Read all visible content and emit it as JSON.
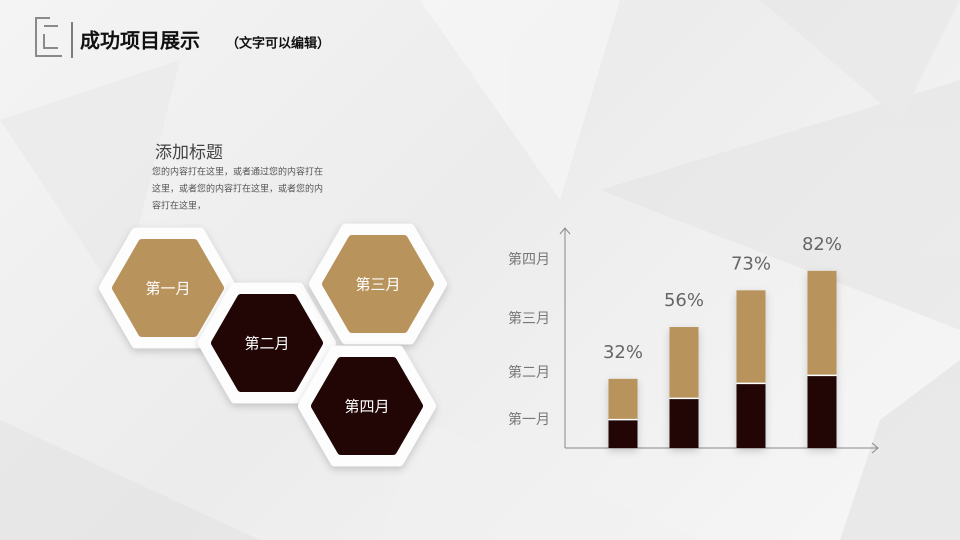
{
  "header": {
    "title": "成功项目展示",
    "subtitle": "（文字可以编辑）"
  },
  "text_block": {
    "heading": "添加标题",
    "lines": [
      "您的内容打在这里，或者通过您的内容打在",
      "这里，或者您的内容打在这里，或者您的内",
      "容打在这里，"
    ]
  },
  "hexagons": [
    {
      "label": "第一月"
    },
    {
      "label": "第二月"
    },
    {
      "label": "第三月"
    },
    {
      "label": "第四月"
    }
  ],
  "chart_data": {
    "type": "bar",
    "y_labels": [
      "第一月",
      "第二月",
      "第三月",
      "第四月"
    ],
    "values": [
      32,
      56,
      73,
      82
    ],
    "value_labels": [
      "32%",
      "56%",
      "73%",
      "82%"
    ],
    "colors": [
      "#220505",
      "#b9935c"
    ],
    "ylim": [
      0,
      100
    ]
  }
}
